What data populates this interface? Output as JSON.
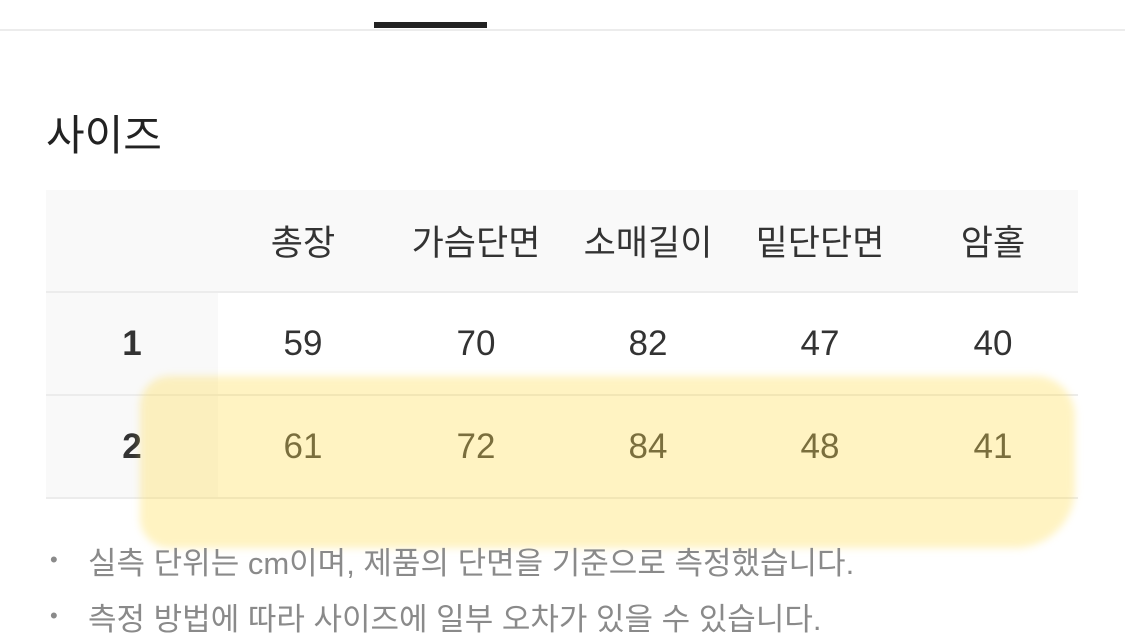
{
  "section_title": "사이즈",
  "table": {
    "headers": [
      "총장",
      "가슴단면",
      "소매길이",
      "밑단단면",
      "암홀"
    ],
    "rows": [
      {
        "size": "1",
        "values": [
          "59",
          "70",
          "82",
          "47",
          "40"
        ]
      },
      {
        "size": "2",
        "values": [
          "61",
          "72",
          "84",
          "48",
          "41"
        ]
      }
    ],
    "highlighted_row": "2",
    "highlight_color": "#FFE98A"
  },
  "notes": [
    "실측 단위는 cm이며, 제품의 단면을 기준으로 측정했습니다.",
    "측정 방법에 따라 사이즈에 일부 오차가 있을 수 있습니다."
  ],
  "bullet": "•"
}
